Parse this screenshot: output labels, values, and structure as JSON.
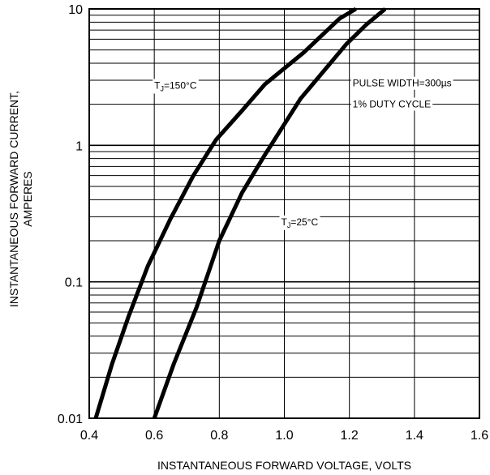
{
  "chart_data": {
    "type": "line",
    "title": "",
    "xlabel": "INSTANTANEOUS FORWARD VOLTAGE, VOLTS",
    "ylabel_lines": [
      "INSTANTANEOUS FORWARD CURRENT,",
      "AMPERES"
    ],
    "xlim": [
      0.4,
      1.6
    ],
    "ylim": [
      0.01,
      10
    ],
    "yscale": "log",
    "grid": true,
    "x_ticks": [
      0.4,
      0.6,
      0.8,
      1.0,
      1.2,
      1.4,
      1.6
    ],
    "x_tick_labels": [
      "0.4",
      "0.6",
      "0.8",
      "1.0",
      "1.2",
      "1.4",
      "1.6"
    ],
    "y_ticks": [
      0.01,
      0.1,
      1,
      10
    ],
    "y_tick_labels": [
      "0.01",
      "0.1",
      "1",
      "10"
    ],
    "series": [
      {
        "name": "TJ=150°C",
        "x": [
          0.42,
          0.47,
          0.52,
          0.58,
          0.65,
          0.72,
          0.79,
          0.87,
          0.94,
          1.06,
          1.13,
          1.17,
          1.22
        ],
        "y": [
          0.01,
          0.025,
          0.055,
          0.13,
          0.29,
          0.6,
          1.1,
          1.8,
          2.8,
          4.8,
          6.9,
          8.5,
          10
        ]
      },
      {
        "name": "TJ=25°C",
        "x": [
          0.6,
          0.66,
          0.73,
          0.8,
          0.87,
          0.94,
          1.05,
          1.19,
          1.25,
          1.31
        ],
        "y": [
          0.01,
          0.025,
          0.065,
          0.2,
          0.45,
          0.85,
          2.2,
          5.5,
          7.6,
          10
        ]
      }
    ],
    "annotations": [
      {
        "text": "TJ=150°C",
        "x": 0.6,
        "y": 2.6
      },
      {
        "text": "TJ=25°C",
        "x": 0.99,
        "y": 0.26
      },
      {
        "text": "PULSE WIDTH=300µs",
        "x": 1.21,
        "y": 2.7
      },
      {
        "text": "1% DUTY CYCLE",
        "x": 1.21,
        "y": 1.9
      }
    ]
  }
}
